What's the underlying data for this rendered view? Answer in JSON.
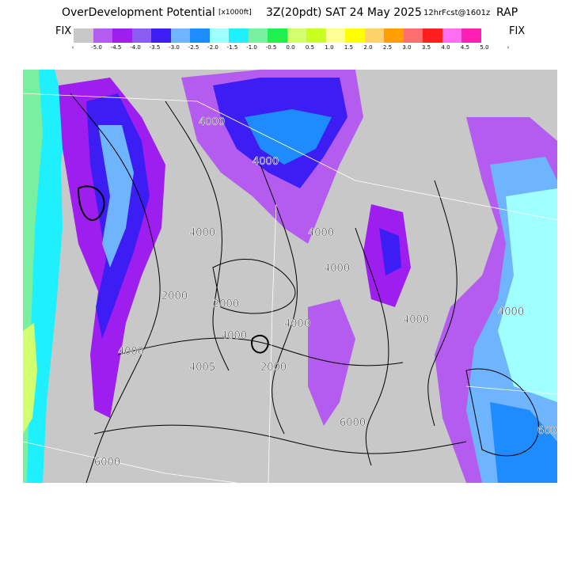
{
  "header": {
    "title": "OverDevelopment Potential",
    "units": "[x1000ft]",
    "valid": "3Z(20pdt) SAT 24 May 2025",
    "forecast": "12hrFcst@1601z",
    "model": "RAP"
  },
  "legend": {
    "fix_left": "FIX",
    "fix_right": "FIX",
    "arrow_left": "‹",
    "arrow_right": "›",
    "tick_labels": [
      "-5.0",
      "-4.5",
      "-4.0",
      "-3.5",
      "-3.0",
      "-2.5",
      "-2.0",
      "-1.5",
      "-1.0",
      "-0.5",
      "0.0",
      "0.5",
      "1.0",
      "1.5",
      "2.0",
      "2.5",
      "3.0",
      "3.5",
      "4.0",
      "4.5",
      "5.0"
    ],
    "colors": [
      "#c8c8c8",
      "#b55cf0",
      "#9e1ef0",
      "#8b5cf0",
      "#3c1ef5",
      "#6eb4ff",
      "#1e8cff",
      "#a0ffff",
      "#1ef0ff",
      "#78f0a0",
      "#1ef050",
      "#d2ff6e",
      "#c8ff1e",
      "#ffff96",
      "#ffff00",
      "#ffd26e",
      "#ffa000",
      "#ff6e6e",
      "#ff1e1e",
      "#ff6ef0",
      "#ff1eb4"
    ]
  },
  "map": {
    "contour_labels": [
      "4000",
      "4000",
      "4000",
      "4000",
      "2000",
      "2000",
      "4000",
      "4000",
      "4005",
      "6000",
      "4000",
      "6000",
      "4000",
      "4000",
      "6000",
      "2000",
      "4000"
    ]
  }
}
